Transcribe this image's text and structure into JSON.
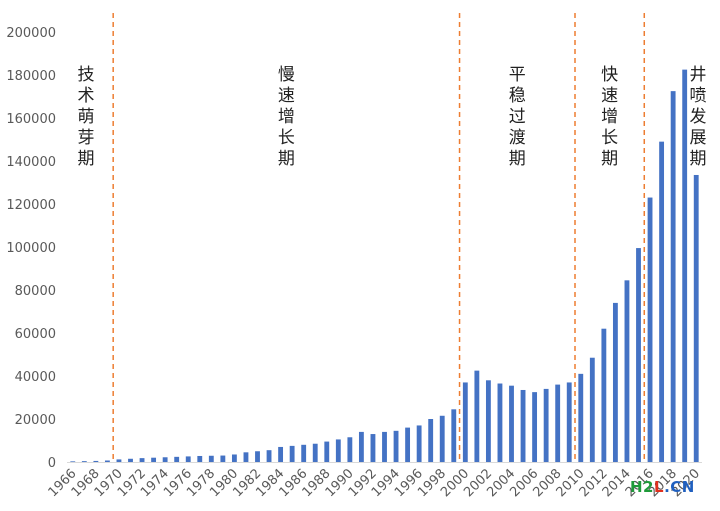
{
  "chart_data": {
    "type": "bar",
    "title": "",
    "xlabel": "",
    "ylabel": "",
    "ylim": [
      0,
      200000
    ],
    "yticks": [
      0,
      20000,
      40000,
      60000,
      80000,
      100000,
      120000,
      140000,
      160000,
      180000,
      200000
    ],
    "grid": false,
    "bar_color": "#4472c4",
    "divider_color": "#ed7d31",
    "categories": [
      1966,
      1967,
      1968,
      1969,
      1970,
      1971,
      1972,
      1973,
      1974,
      1975,
      1976,
      1977,
      1978,
      1979,
      1980,
      1981,
      1982,
      1983,
      1984,
      1985,
      1986,
      1987,
      1988,
      1989,
      1990,
      1991,
      1992,
      1993,
      1994,
      1995,
      1996,
      1997,
      1998,
      1999,
      2000,
      2001,
      2002,
      2003,
      2004,
      2005,
      2006,
      2007,
      2008,
      2009,
      2010,
      2011,
      2012,
      2013,
      2014,
      2015,
      2016,
      2017,
      2018,
      2019,
      2020
    ],
    "x_tick_labels": [
      "1966",
      "1968",
      "1970",
      "1972",
      "1974",
      "1976",
      "1978",
      "1980",
      "1982",
      "1984",
      "1986",
      "1988",
      "1990",
      "1992",
      "1994",
      "1996",
      "1998",
      "2000",
      "2002",
      "2004",
      "2006",
      "2008",
      "2010",
      "2012",
      "2014",
      "2016",
      "2018",
      "2020"
    ],
    "values": [
      300,
      400,
      500,
      700,
      1200,
      1500,
      1800,
      2000,
      2200,
      2400,
      2600,
      2800,
      2900,
      3000,
      3500,
      4500,
      5000,
      5500,
      7000,
      7500,
      8000,
      8500,
      9500,
      10500,
      11500,
      14000,
      13000,
      14000,
      14500,
      16000,
      17000,
      20000,
      21500,
      24500,
      37000,
      42500,
      38000,
      36500,
      35500,
      33500,
      32500,
      34000,
      36000,
      37000,
      41000,
      48500,
      62000,
      74000,
      84500,
      99500,
      123000,
      149000,
      172500,
      182500,
      133500
    ],
    "dividers": [
      {
        "after": 1969,
        "label": "技术萌芽期"
      },
      {
        "after": 1999,
        "label": "慢速增长期"
      },
      {
        "after": 2009,
        "label": "平稳过渡期"
      },
      {
        "after": 2015,
        "label": "快速增长期"
      }
    ],
    "phase_labels": [
      "技术萌芽期",
      "慢速增长期",
      "平稳过渡期",
      "快速增长期",
      "井喷发展期"
    ]
  },
  "watermark": {
    "part1": "H2",
    "part2": "L",
    "part3": ".CN"
  }
}
